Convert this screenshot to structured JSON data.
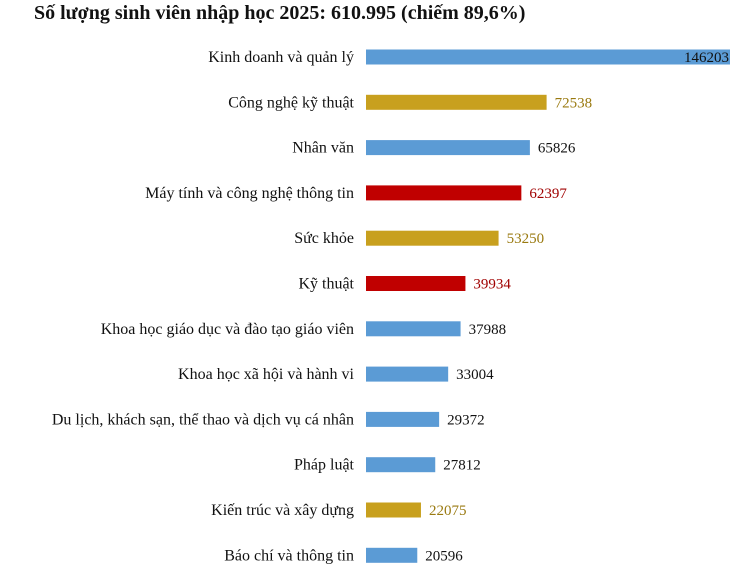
{
  "chart_data": {
    "type": "bar",
    "orientation": "horizontal",
    "title": "Số lượng sinh viên nhập học 2025: 610.995 (chiếm 89,6%)",
    "xlabel": "",
    "ylabel": "",
    "xlim": [
      0,
      146203
    ],
    "grid": false,
    "legend": "none",
    "colors": {
      "blue": "#5b9bd5",
      "gold": "#c8a01e",
      "red": "#c00000",
      "value_text_default": "#111111",
      "value_text_gold": "#9a7a10",
      "value_text_red": "#a00000"
    },
    "categories": [
      "Kinh doanh và quản lý",
      "Công nghệ kỹ thuật",
      "Nhân văn",
      "Máy tính và công nghệ thông tin",
      "Sức khỏe",
      "Kỹ thuật",
      "Khoa học giáo dục và đào tạo giáo viên",
      "Khoa học xã hội và hành vi",
      "Du lịch, khách sạn, thể thao và dịch vụ cá nhân",
      "Pháp luật",
      "Kiến trúc và xây dựng",
      "Báo chí và thông tin"
    ],
    "values": [
      146203,
      72538,
      65826,
      62397,
      53250,
      39934,
      37988,
      33004,
      29372,
      27812,
      22075,
      20596
    ],
    "value_labels": [
      "146203",
      "72538",
      "65826",
      "62397",
      "53250",
      "39934",
      "37988",
      "33004",
      "29372",
      "27812",
      "22075",
      "20596"
    ],
    "bar_colors": [
      "blue",
      "gold",
      "blue",
      "red",
      "gold",
      "red",
      "blue",
      "blue",
      "blue",
      "blue",
      "gold",
      "blue"
    ]
  }
}
